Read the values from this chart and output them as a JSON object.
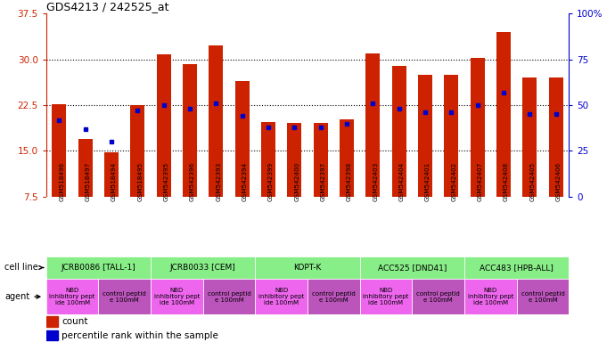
{
  "title": "GDS4213 / 242525_at",
  "samples": [
    "GSM518496",
    "GSM518497",
    "GSM518494",
    "GSM518495",
    "GSM542395",
    "GSM542396",
    "GSM542393",
    "GSM542394",
    "GSM542399",
    "GSM542400",
    "GSM542397",
    "GSM542398",
    "GSM542403",
    "GSM542404",
    "GSM542401",
    "GSM542402",
    "GSM542407",
    "GSM542408",
    "GSM542405",
    "GSM542406"
  ],
  "count_values": [
    22.7,
    17.0,
    14.8,
    22.5,
    30.9,
    29.2,
    32.3,
    26.5,
    19.8,
    19.6,
    19.6,
    20.2,
    31.0,
    29.0,
    27.5,
    27.5,
    30.2,
    34.5,
    27.0,
    27.0
  ],
  "percentile_raw": [
    42,
    37,
    30,
    47,
    50,
    48,
    51,
    44,
    38,
    38,
    38,
    40,
    51,
    48,
    46,
    46,
    50,
    57,
    45,
    45
  ],
  "ylim_left": [
    7.5,
    37.5
  ],
  "ylim_right": [
    0,
    100
  ],
  "yticks_left": [
    7.5,
    15.0,
    22.5,
    30.0,
    37.5
  ],
  "yticks_right": [
    0,
    25,
    50,
    75,
    100
  ],
  "bar_color": "#cc2200",
  "dot_color": "#0000cc",
  "plot_bg": "#ffffff",
  "tick_label_bg": "#d0d0d0",
  "cell_line_groups": [
    {
      "label": "JCRB0086 [TALL-1]",
      "start": 0,
      "end": 3,
      "color": "#88ee88"
    },
    {
      "label": "JCRB0033 [CEM]",
      "start": 4,
      "end": 7,
      "color": "#88ee88"
    },
    {
      "label": "KOPT-K",
      "start": 8,
      "end": 11,
      "color": "#88ee88"
    },
    {
      "label": "ACC525 [DND41]",
      "start": 12,
      "end": 15,
      "color": "#88ee88"
    },
    {
      "label": "ACC483 [HPB-ALL]",
      "start": 16,
      "end": 19,
      "color": "#88ee88"
    }
  ],
  "agent_groups": [
    {
      "label": "NBD\ninhibitory pept\nide 100mM",
      "start": 0,
      "end": 1,
      "color": "#ee66ee"
    },
    {
      "label": "control peptid\ne 100mM",
      "start": 2,
      "end": 3,
      "color": "#bb55bb"
    },
    {
      "label": "NBD\ninhibitory pept\nide 100mM",
      "start": 4,
      "end": 5,
      "color": "#ee66ee"
    },
    {
      "label": "control peptid\ne 100mM",
      "start": 6,
      "end": 7,
      "color": "#bb55bb"
    },
    {
      "label": "NBD\ninhibitory pept\nide 100mM",
      "start": 8,
      "end": 9,
      "color": "#ee66ee"
    },
    {
      "label": "control peptid\ne 100mM",
      "start": 10,
      "end": 11,
      "color": "#bb55bb"
    },
    {
      "label": "NBD\ninhibitory pept\nide 100mM",
      "start": 12,
      "end": 13,
      "color": "#ee66ee"
    },
    {
      "label": "control peptid\ne 100mM",
      "start": 14,
      "end": 15,
      "color": "#bb55bb"
    },
    {
      "label": "NBD\ninhibitory pept\nide 100mM",
      "start": 16,
      "end": 17,
      "color": "#ee66ee"
    },
    {
      "label": "control peptid\ne 100mM",
      "start": 18,
      "end": 19,
      "color": "#bb55bb"
    }
  ],
  "legend_items": [
    {
      "label": "count",
      "color": "#cc2200"
    },
    {
      "label": "percentile rank within the sample",
      "color": "#0000cc"
    }
  ]
}
